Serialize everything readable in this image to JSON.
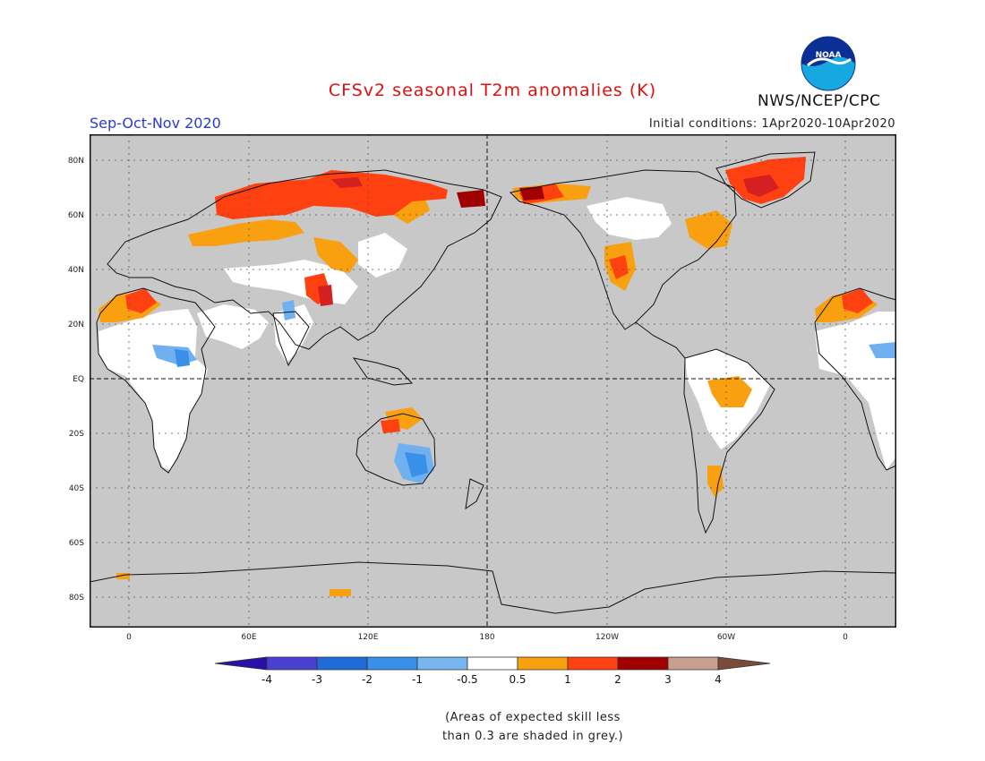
{
  "header": {
    "title": "CFSv2 seasonal T2m anomalies (K)",
    "season": "Sep-Oct-Nov 2020",
    "initial_conditions": "Initial conditions: 1Apr2020-10Apr2020",
    "organization": "NWS/NCEP/CPC",
    "logo_text": "NOAA"
  },
  "map": {
    "lat_labels": [
      "80N",
      "60N",
      "40N",
      "20N",
      "EQ",
      "20S",
      "40S",
      "60S",
      "80S"
    ],
    "lon_labels": [
      "0",
      "60E",
      "120E",
      "180",
      "120W",
      "60W",
      "0"
    ],
    "grey_meaning": "skill < 0.3",
    "colors": {
      "ocean_grey": "#c8c8c8",
      "land_neutral": "#ffffff",
      "warm_0_5_1": "#f8a010",
      "warm_1_2": "#ff4010",
      "warm_2_3": "#d42020",
      "warm_3_4": "#a00000",
      "cool_m1_m0_5": "#70b0f0",
      "cool_m2_m1": "#3890e8"
    }
  },
  "colorbar": {
    "labels": [
      "-4",
      "-3",
      "-2",
      "-1",
      "-0.5",
      "0.5",
      "1",
      "2",
      "3",
      "4"
    ],
    "colors": [
      "#2a10a8",
      "#4a40d0",
      "#1e6cd8",
      "#3890e8",
      "#78b8f0",
      "#ffffff",
      "#f8a010",
      "#ff4010",
      "#d42020",
      "#a00000",
      "#c8a090",
      "#7a4a3a"
    ]
  },
  "footnote": {
    "line1": "(Areas of expected skill less",
    "line2": "than 0.3 are shaded in grey.)"
  }
}
